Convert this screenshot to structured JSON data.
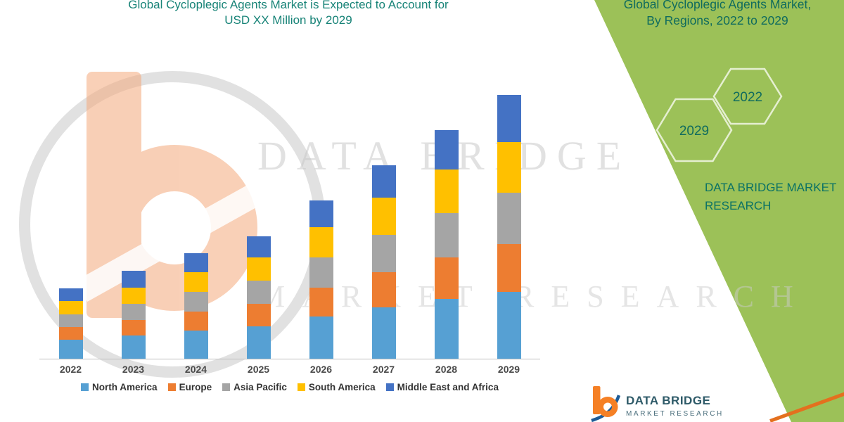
{
  "header": {
    "line1": "Global Cycloplegic Agents Market is Expected to Account for",
    "line2": "USD XX Million by 2029"
  },
  "chart_data": {
    "type": "bar",
    "stacked": true,
    "title": "Global Cycloplegic Agents Market is Expected to Account for USD XX Million by 2029",
    "categories": [
      "2022",
      "2023",
      "2024",
      "2025",
      "2026",
      "2027",
      "2028",
      "2029"
    ],
    "series": [
      {
        "name": "North America",
        "color": "#56A0D3",
        "values": [
          27,
          33,
          40,
          46,
          60,
          73,
          85,
          95
        ]
      },
      {
        "name": "Europe",
        "color": "#ED7D31",
        "values": [
          18,
          22,
          27,
          32,
          41,
          50,
          59,
          68
        ]
      },
      {
        "name": "Asia Pacific",
        "color": "#A5A5A5",
        "values": [
          18,
          23,
          28,
          33,
          43,
          53,
          63,
          73
        ]
      },
      {
        "name": "South America",
        "color": "#FFC000",
        "values": [
          19,
          23,
          28,
          33,
          43,
          53,
          62,
          72
        ]
      },
      {
        "name": "Middle East and Africa",
        "color": "#4472C4",
        "values": [
          18,
          24,
          27,
          30,
          38,
          46,
          56,
          67
        ]
      }
    ],
    "xlabel": "",
    "ylabel": "",
    "value_axis_visible": false,
    "legend_position": "bottom",
    "ylim": [
      0,
      454
    ]
  },
  "watermark": {
    "brand": "DATA BRIDGE",
    "tagline": "MARKET RESEARCH"
  },
  "right_panel": {
    "title_line1": "Global Cycloplegic Agents Market,",
    "title_line2": "By Regions, 2022 to 2029",
    "hex_year_top": "2022",
    "hex_year_bottom": "2029",
    "brand_line1": "DATA BRIDGE MARKET",
    "brand_line2": "RESEARCH"
  },
  "footer_logo": {
    "name_line": "DATA BRIDGE",
    "sub_line": "MARKET RESEARCH"
  },
  "colors": {
    "panel_green": "#9CC158",
    "title_teal": "#178377",
    "accent_orange": "#E4701E"
  }
}
